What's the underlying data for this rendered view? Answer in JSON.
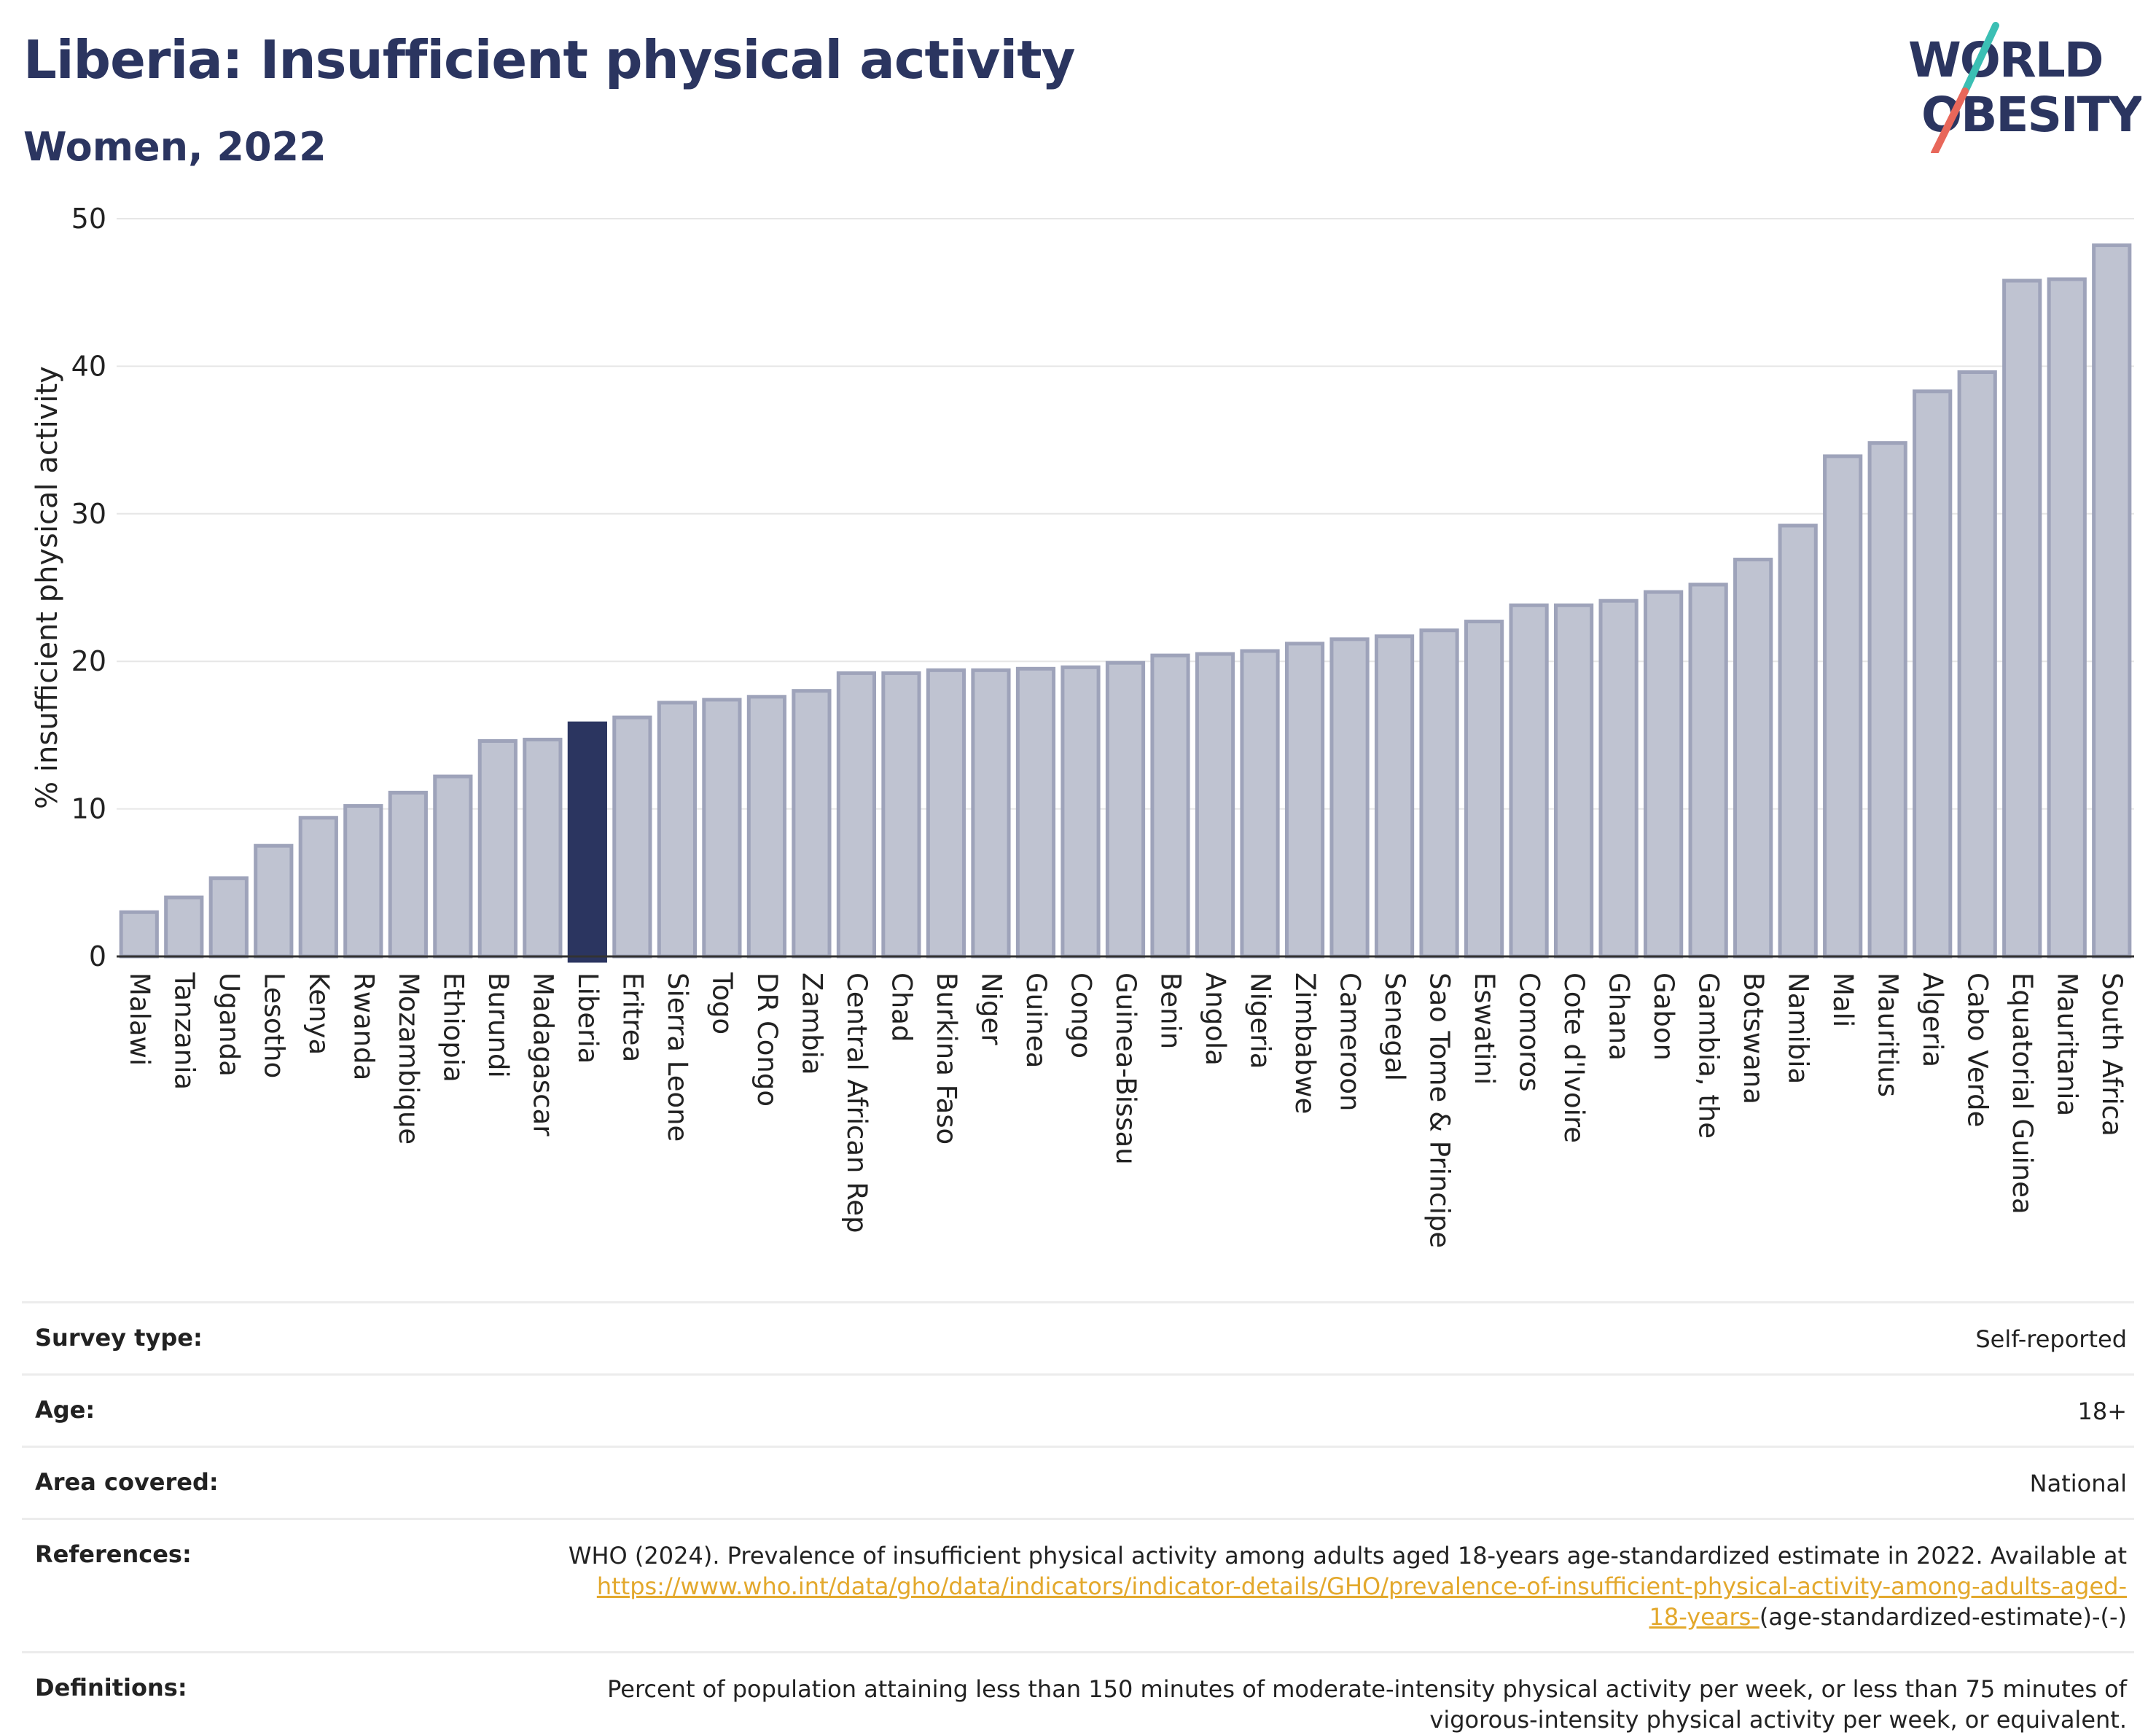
{
  "header": {
    "title": "Liberia: Insufficient physical activity",
    "subtitle": "Women, 2022"
  },
  "logo": {
    "line1": "WORLD",
    "line2": "OBESITY",
    "colors": {
      "text": "#2b3560",
      "slash_top": "#3bbfb4",
      "slash_bottom": "#e8675a"
    }
  },
  "colors": {
    "highlight_bar": "#2b3560",
    "bar_fill": "#bfc3d1",
    "bar_stroke": "#9ea3ba",
    "link": "#e3a82c"
  },
  "chart_data": {
    "type": "bar",
    "title": "Liberia: Insufficient physical activity",
    "subtitle": "Women, 2022",
    "xlabel": "",
    "ylabel": "% insufficient physical activity",
    "ylim": [
      0,
      50
    ],
    "yticks": [
      0,
      10,
      20,
      30,
      40,
      50
    ],
    "grid": true,
    "highlight": "Liberia",
    "categories": [
      "Malawi",
      "Tanzania",
      "Uganda",
      "Lesotho",
      "Kenya",
      "Rwanda",
      "Mozambique",
      "Ethiopia",
      "Burundi",
      "Madagascar",
      "Liberia",
      "Eritrea",
      "Sierra Leone",
      "Togo",
      "DR Congo",
      "Zambia",
      "Central African Rep",
      "Chad",
      "Burkina Faso",
      "Niger",
      "Guinea",
      "Congo",
      "Guinea-Bissau",
      "Benin",
      "Angola",
      "Nigeria",
      "Zimbabwe",
      "Cameroon",
      "Senegal",
      "Sao Tome & Principe",
      "Eswatini",
      "Comoros",
      "Cote d'Ivoire",
      "Ghana",
      "Gabon",
      "Gambia, the",
      "Botswana",
      "Namibia",
      "Mali",
      "Mauritius",
      "Algeria",
      "Cabo Verde",
      "Equatorial Guinea",
      "Mauritania",
      "South Africa"
    ],
    "values": [
      3.0,
      4.0,
      5.3,
      7.5,
      9.4,
      10.2,
      11.1,
      12.2,
      14.6,
      14.7,
      15.8,
      16.2,
      17.2,
      17.4,
      17.6,
      18.0,
      19.2,
      19.2,
      19.4,
      19.4,
      19.5,
      19.6,
      19.9,
      20.4,
      20.5,
      20.7,
      21.2,
      21.5,
      21.7,
      22.1,
      22.7,
      23.8,
      23.8,
      24.1,
      24.7,
      25.2,
      26.9,
      29.2,
      33.9,
      34.8,
      38.3,
      39.6,
      45.8,
      45.9,
      48.2
    ]
  },
  "info": {
    "survey_type": {
      "label": "Survey type:",
      "value": "Self-reported"
    },
    "age": {
      "label": "Age:",
      "value": "18+"
    },
    "area": {
      "label": "Area covered:",
      "value": "National"
    },
    "references": {
      "label": "References:",
      "text": "WHO (2024). Prevalence of insufficient physical activity among adults aged 18-years age-standardized estimate in 2022. Available at",
      "link_line1": "https://www.who.int/data/gho/data/indicators/indicator-details/GHO/prevalence-of-insufficient-physical-activity-among-adults-aged-",
      "link_line2": "18-years-",
      "suffix": "(age-standardized-estimate)-(-)"
    },
    "definitions": {
      "label": "Definitions:",
      "line1": "Percent of population attaining less than 150 minutes of moderate-intensity physical activity per week, or less than 75 minutes of",
      "line2": "vigorous-intensity physical activity per week, or equivalent."
    }
  }
}
